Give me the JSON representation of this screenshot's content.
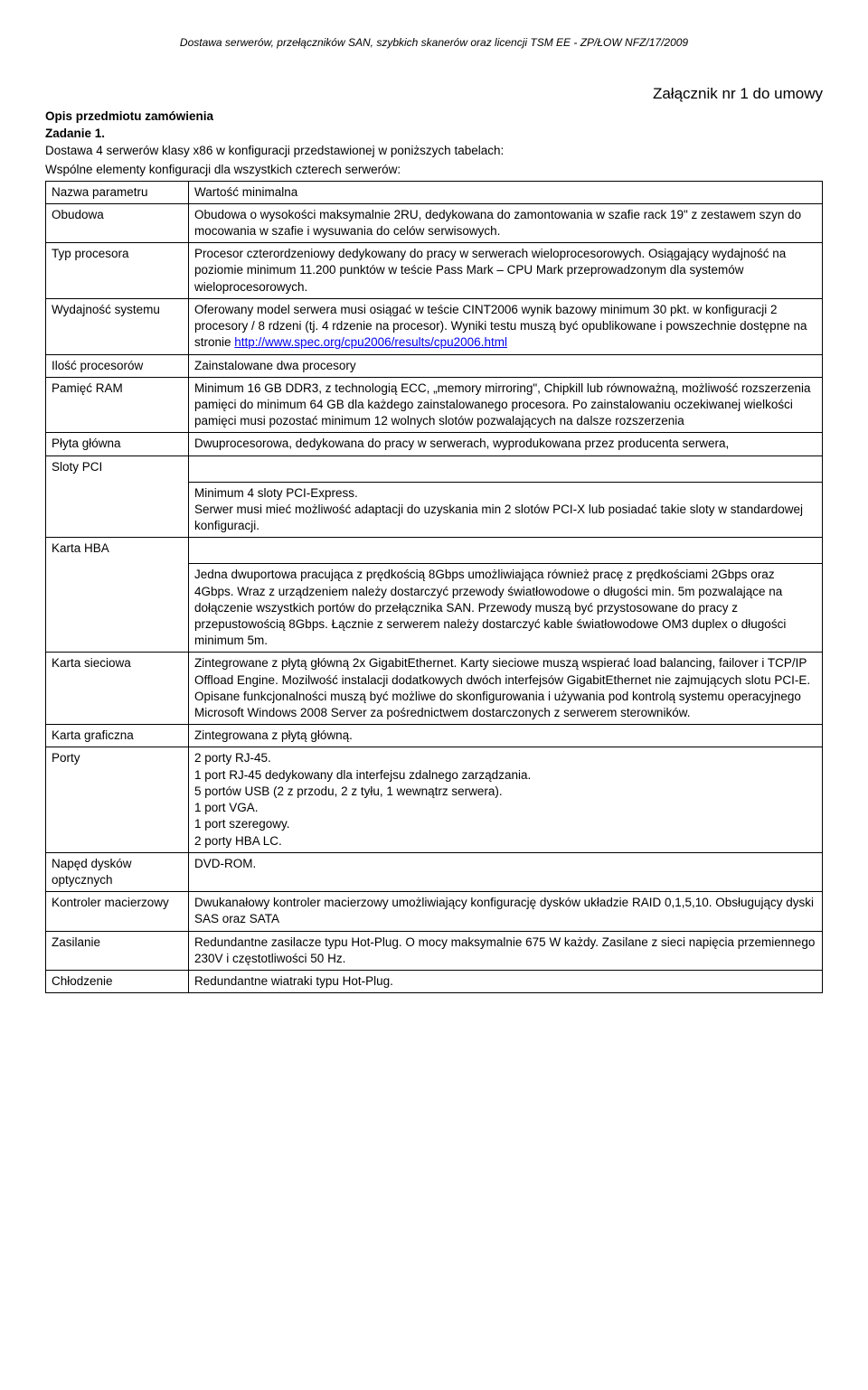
{
  "header": "Dostawa serwerów, przełączników SAN, szybkich skanerów oraz licencji TSM EE - ZP/ŁOW NFZ/17/2009",
  "attachment": "Załącznik nr 1 do umowy",
  "title1": "Opis przedmiotu zamówienia",
  "title2": "Zadanie 1.",
  "intro1": "Dostawa 4 serwerów klasy x86 w konfiguracji przedstawionej w poniższych tabelach:",
  "intro2": "Wspólne elementy konfiguracji dla wszystkich czterech serwerów:",
  "col_head_param": "Nazwa parametru",
  "col_head_value": "Wartość minimalna",
  "link_url": "http://www.spec.org/cpu2006/results/cpu2006.html",
  "rows": [
    {
      "param": "Obudowa",
      "value": "Obudowa o wysokości maksymalnie 2RU, dedykowana do zamontowania w szafie rack 19\" z zestawem szyn do mocowania w szafie i wysuwania do celów serwisowych."
    },
    {
      "param": "Typ procesora",
      "value": "Procesor czterordzeniowy dedykowany do pracy w serwerach wieloprocesorowych. Osiągający wydajność na poziomie minimum 11.200 punktów w teście Pass Mark – CPU Mark przeprowadzonym dla systemów wieloprocesorowych."
    },
    {
      "param": "Wydajność systemu",
      "value_pre": "Oferowany model serwera musi osiągać w teście CINT2006 wynik bazowy minimum 30 pkt. w konfiguracji 2 procesory / 8 rdzeni (tj. 4 rdzenie na procesor). Wyniki testu muszą być opublikowane i powszechnie dostępne na stronie ",
      "link_text": "http://www.spec.org/cpu2006/results/cpu2006.html"
    },
    {
      "param": "Ilość procesorów",
      "value": "Zainstalowane dwa procesory"
    },
    {
      "param": "Pamięć RAM",
      "value": "Minimum 16 GB DDR3, z technologią ECC, „memory mirroring\", Chipkill lub równoważną, możliwość rozszerzenia pamięci do minimum 64 GB dla każdego zainstalowanego procesora. Po zainstalowaniu oczekiwanej wielkości pamięci musi pozostać minimum 12 wolnych slotów pozwalających na dalsze rozszerzenia"
    },
    {
      "param": "Płyta główna",
      "value": "Dwuprocesorowa, dedykowana do pracy w serwerach, wyprodukowana przez producenta serwera,"
    },
    {
      "param": "Sloty PCI",
      "value": "Minimum 4 sloty PCI-Express.\nSerwer musi mieć możliwość adaptacji do uzyskania min 2 slotów PCI-X lub posiadać takie sloty w standardowej konfiguracji."
    },
    {
      "param": "Karta HBA",
      "value": "Jedna dwuportowa pracująca z prędkością 8Gbps umożliwiająca również pracę z prędkościami 2Gbps oraz 4Gbps. Wraz z urządzeniem należy dostarczyć przewody światłowodowe o długości min. 5m pozwalające na dołączenie wszystkich portów do przełącznika SAN. Przewody muszą być przystosowane do pracy z przepustowością 8Gbps. Łącznie z serwerem należy dostarczyć kable światłowodowe  OM3 duplex o długości minimum 5m."
    },
    {
      "param": "Karta sieciowa",
      "value": "Zintegrowane z płytą główną 2x GigabitEthernet. Karty sieciowe muszą wspierać load balancing, failover i TCP/IP Offload Engine. Mozilwość instalacji dodatkowych dwóch interfejsów GigabitEthernet nie zajmujących slotu PCI-E. Opisane funkcjonalności muszą być możliwe do skonfigurowania i używania pod kontrolą systemu operacyjnego Microsoft Windows 2008 Server za pośrednictwem dostarczonych z serwerem sterowników."
    },
    {
      "param": "Karta graficzna",
      "value": "Zintegrowana z płytą główną."
    },
    {
      "param": "Porty",
      "value": "2 porty RJ-45.\n1 port RJ-45 dedykowany dla interfejsu zdalnego zarządzania.\n5 portów USB (2 z przodu, 2 z tyłu, 1 wewnątrz serwera).\n1 port VGA.\n1 port szeregowy.\n2 porty HBA LC."
    },
    {
      "param": "Napęd dysków optycznych",
      "value": "DVD-ROM."
    },
    {
      "param": "Kontroler macierzowy",
      "value": "Dwukanałowy kontroler macierzowy umożliwiający konfigurację dysków układzie RAID 0,1,5,10. Obsługujący dyski SAS oraz SATA"
    },
    {
      "param": "Zasilanie",
      "value": "Redundantne zasilacze typu Hot-Plug. O mocy maksymalnie 675 W każdy. Zasilane z sieci napięcia przemiennego 230V i częstotliwości 50 Hz."
    },
    {
      "param": "Chłodzenie",
      "value": "Redundantne wiatraki typu Hot-Plug."
    }
  ]
}
